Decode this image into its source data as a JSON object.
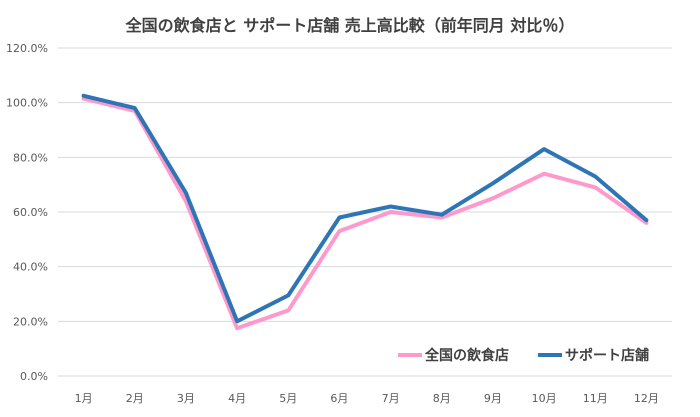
{
  "chart_data": {
    "type": "line",
    "title": "全国の飲食店と サポート店舗 売上高比較（前年同月 対比％）",
    "categories": [
      "1月",
      "2月",
      "3月",
      "4月",
      "5月",
      "6月",
      "7月",
      "8月",
      "9月",
      "10月",
      "11月",
      "12月"
    ],
    "ylim": [
      0,
      120
    ],
    "yticks": [
      "0.0%",
      "20.0%",
      "40.0%",
      "60.0%",
      "80.0%",
      "100.0%",
      "120.0%"
    ],
    "grid": true,
    "legend_position": "bottom-right",
    "series": [
      {
        "name": "全国の飲食店",
        "color": "#ff99cc",
        "values": [
          101.5,
          97.0,
          64.0,
          17.5,
          24.0,
          53.0,
          60.0,
          58.0,
          65.0,
          74.0,
          69.0,
          56.0
        ]
      },
      {
        "name": "サポート店舗",
        "color": "#2e75b6",
        "values": [
          102.5,
          98.0,
          67.0,
          20.0,
          29.5,
          58.0,
          62.0,
          59.0,
          70.5,
          83.0,
          73.0,
          57.0
        ]
      }
    ]
  }
}
